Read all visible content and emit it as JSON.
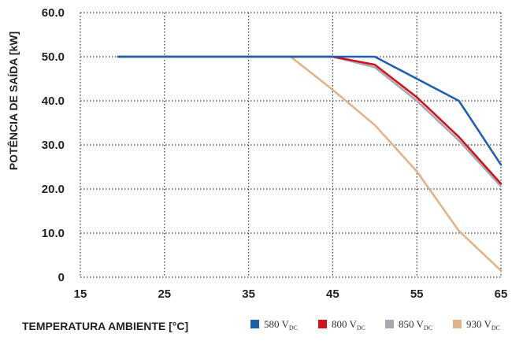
{
  "chart_data": {
    "type": "line",
    "xlabel": "TEMPERATURA AMBIENTE [°C]",
    "ylabel": "POTÊNCIA DE SAÍDA [kW]",
    "xlim": [
      15,
      65
    ],
    "ylim": [
      0,
      60
    ],
    "x_ticks": [
      "15",
      "25",
      "35",
      "45",
      "55",
      "65"
    ],
    "y_ticks": [
      "0",
      "10.0",
      "20.0",
      "30.0",
      "40.0",
      "50.0",
      "60.0"
    ],
    "grid": "dotted",
    "legend_position": "bottom",
    "series": [
      {
        "name": "580 V",
        "name_sub": "DC",
        "color": "#1f5fae",
        "x": [
          19.5,
          45,
          50,
          55,
          60,
          65
        ],
        "y": [
          50,
          50,
          50,
          45,
          40,
          25.5
        ]
      },
      {
        "name": "800 V",
        "name_sub": "DC",
        "color": "#d0121b",
        "x": [
          19.5,
          45,
          50,
          55,
          60,
          65
        ],
        "y": [
          50,
          50,
          48.2,
          40.8,
          31.8,
          21.2
        ]
      },
      {
        "name": "850 V",
        "name_sub": "DC",
        "color": "#a7a9b2",
        "x": [
          19.5,
          45,
          50,
          55,
          60,
          65
        ],
        "y": [
          50,
          50,
          47.6,
          40.0,
          31.0,
          20.6
        ]
      },
      {
        "name": "930 V",
        "name_sub": "DC",
        "color": "#e0b48a",
        "x": [
          40,
          45,
          50,
          55,
          60,
          65
        ],
        "y": [
          50,
          42.5,
          34.5,
          24,
          10.5,
          1.5
        ]
      }
    ]
  }
}
